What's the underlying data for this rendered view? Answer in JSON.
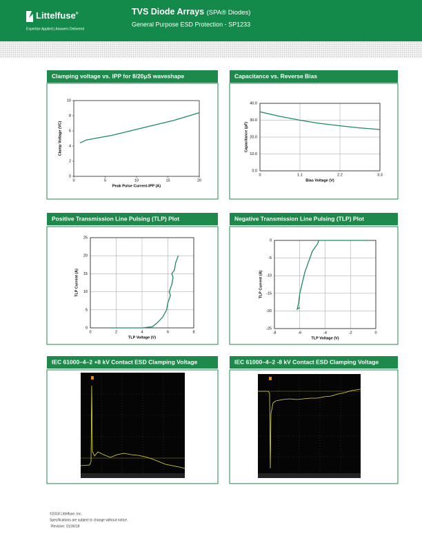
{
  "header": {
    "logo": "Littelfuse",
    "logo_mark": "®",
    "tagline": "Expertise Applied  |  Answers Delivered",
    "title": "TVS Diode Arrays",
    "title_suffix": "(SPA® Diodes)",
    "subtitle": "General Purpose ESD Protection - SP1233"
  },
  "chart_data": [
    {
      "type": "line",
      "title": "Clamping voltage vs. IPP for 8/20μS waveshape",
      "x_label": "Peak Pulse Current-IPP (A)",
      "y_label": "Clamp Voltage (VC)",
      "x": [
        1,
        2,
        4,
        6,
        8,
        10,
        12,
        14,
        16,
        18,
        20
      ],
      "values": [
        4.4,
        4.8,
        5.1,
        5.4,
        5.8,
        6.2,
        6.6,
        7.0,
        7.4,
        7.9,
        8.4
      ],
      "color": "#1b8a5a",
      "xlim": [
        0,
        20
      ],
      "xticks": [
        0,
        5,
        10,
        15,
        20
      ],
      "ylim": [
        0,
        10
      ],
      "yticks": [
        0,
        2,
        4,
        6,
        8,
        10
      ],
      "grid": false
    },
    {
      "type": "line",
      "title": "Capacitance vs. Reverse Bias",
      "x_label": "Bias Voltage (V)",
      "y_label": "Capacitance (pF)",
      "x": [
        0,
        0.5,
        1.1,
        1.6,
        2.2,
        2.7,
        3.3
      ],
      "values": [
        35,
        32.5,
        30,
        28.2,
        26.7,
        25.5,
        24.5
      ],
      "color": "#1b8a5a",
      "xlim": [
        0,
        3.3
      ],
      "xticks": [
        0,
        1.1,
        2.2,
        3.3
      ],
      "ylim": [
        0,
        40
      ],
      "yticks": [
        {
          "value": 0,
          "label": "0.0"
        },
        {
          "value": 10,
          "label": "10.0"
        },
        {
          "value": 20,
          "label": "20.0"
        },
        {
          "value": 30,
          "label": "30.0"
        },
        {
          "value": 40,
          "label": "40.0"
        }
      ],
      "grid": true
    },
    {
      "type": "line",
      "title": "Positive Transmission Line Pulsing (TLP) Plot",
      "x_label": "TLP Voltage (V)",
      "y_label": "TLP Current (A)",
      "x": [
        1.5,
        4,
        4.8,
        5.2,
        5.6,
        5.9,
        6.0,
        6.2,
        6.1,
        6.3,
        6.4,
        6.3,
        6.5,
        6.6,
        6.7,
        6.8
      ],
      "values": [
        0,
        0,
        0.3,
        1.5,
        3,
        5,
        7,
        9,
        10,
        12,
        14,
        15,
        16,
        18,
        19,
        20
      ],
      "color": "#1b8a5a",
      "xlim": [
        0,
        8
      ],
      "xticks": [
        0,
        2,
        4,
        6,
        8
      ],
      "ylim": [
        0,
        25
      ],
      "yticks": [
        0,
        5,
        10,
        15,
        20,
        25
      ],
      "grid": true
    },
    {
      "type": "line",
      "title": "Negative Transmission Line Pulsing (TLP) Plot",
      "x_label": "TLP Voltage (V)",
      "y_label": "TLP Current (A)",
      "x": [
        -0.5,
        -4.5,
        -4.6,
        -5.0,
        -5.3,
        -5.6,
        -5.8,
        -6.0,
        -6.1,
        -6.2,
        -6.0
      ],
      "values": [
        0,
        0,
        -1,
        -3,
        -6,
        -9,
        -12,
        -15,
        -18,
        -19.5,
        -19
      ],
      "color": "#1b8a5a",
      "xlim": [
        -8,
        0
      ],
      "xticks": [
        -8,
        -6,
        -4,
        -2,
        0
      ],
      "ylim": [
        -25,
        0
      ],
      "yticks": [
        -25,
        -20,
        -15,
        -10,
        -5,
        0
      ],
      "grid": true
    }
  ],
  "scope_panels": [
    {
      "title": "IEC 61000–4–2 +8 kV Contact ESD Clamping Voltage"
    },
    {
      "title": "IEC 61000–4–2 -8 kV Contact ESD Clamping Voltage"
    }
  ],
  "footer": {
    "lines": [
      "©2018 Littelfuse, Inc.",
      "Specifications are subject to change without notice.",
      "Revision: 01/30/18"
    ]
  }
}
